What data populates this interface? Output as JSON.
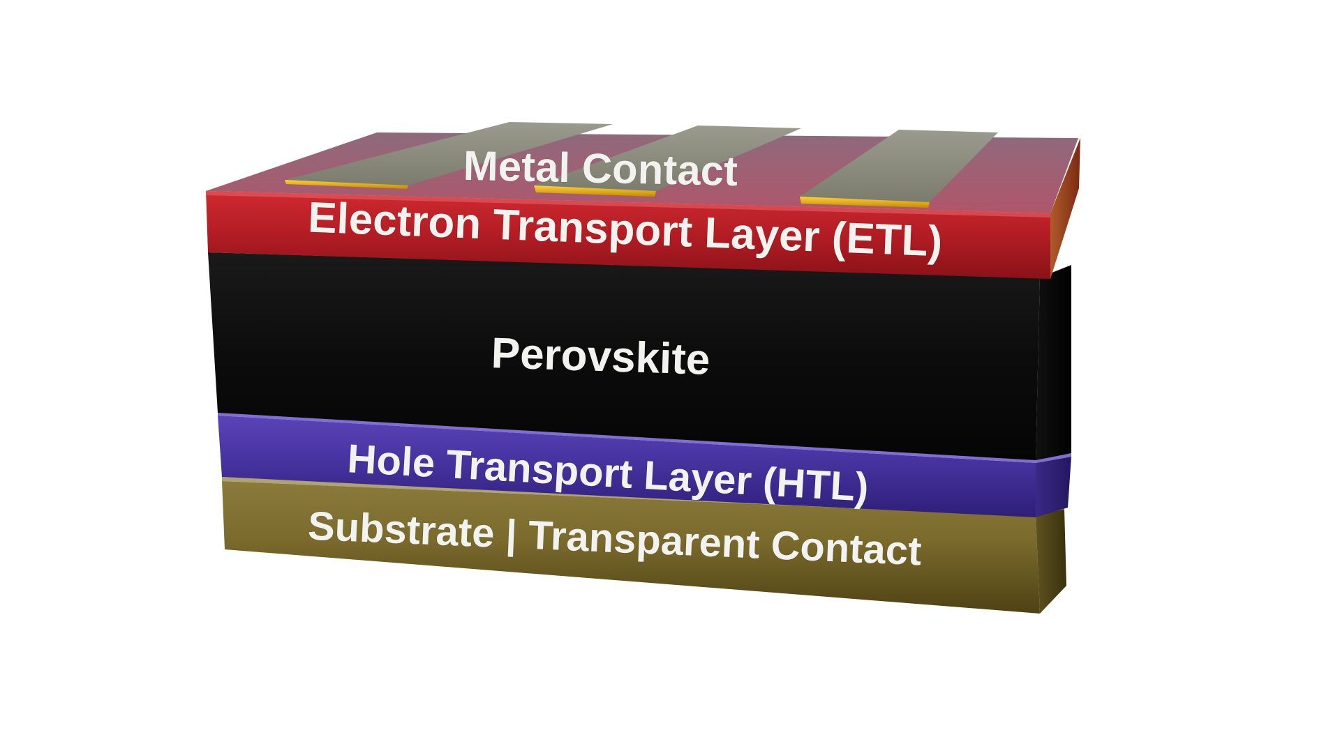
{
  "diagram": {
    "title": "",
    "layers": [
      {
        "id": "metal-contact",
        "label": "Metal Contact",
        "color": "#8a8a7a",
        "accent": "#e0a400"
      },
      {
        "id": "etl",
        "label": "Electron Transport Layer (ETL)",
        "color": "#b81f26"
      },
      {
        "id": "perovskite",
        "label": "Perovskite",
        "color": "#0b0b0b"
      },
      {
        "id": "htl",
        "label": "Hole Transport Layer (HTL)",
        "color": "#4a2f9e"
      },
      {
        "id": "substrate",
        "label": "Substrate | Transparent Contact",
        "color": "#7a6a2a"
      }
    ]
  }
}
